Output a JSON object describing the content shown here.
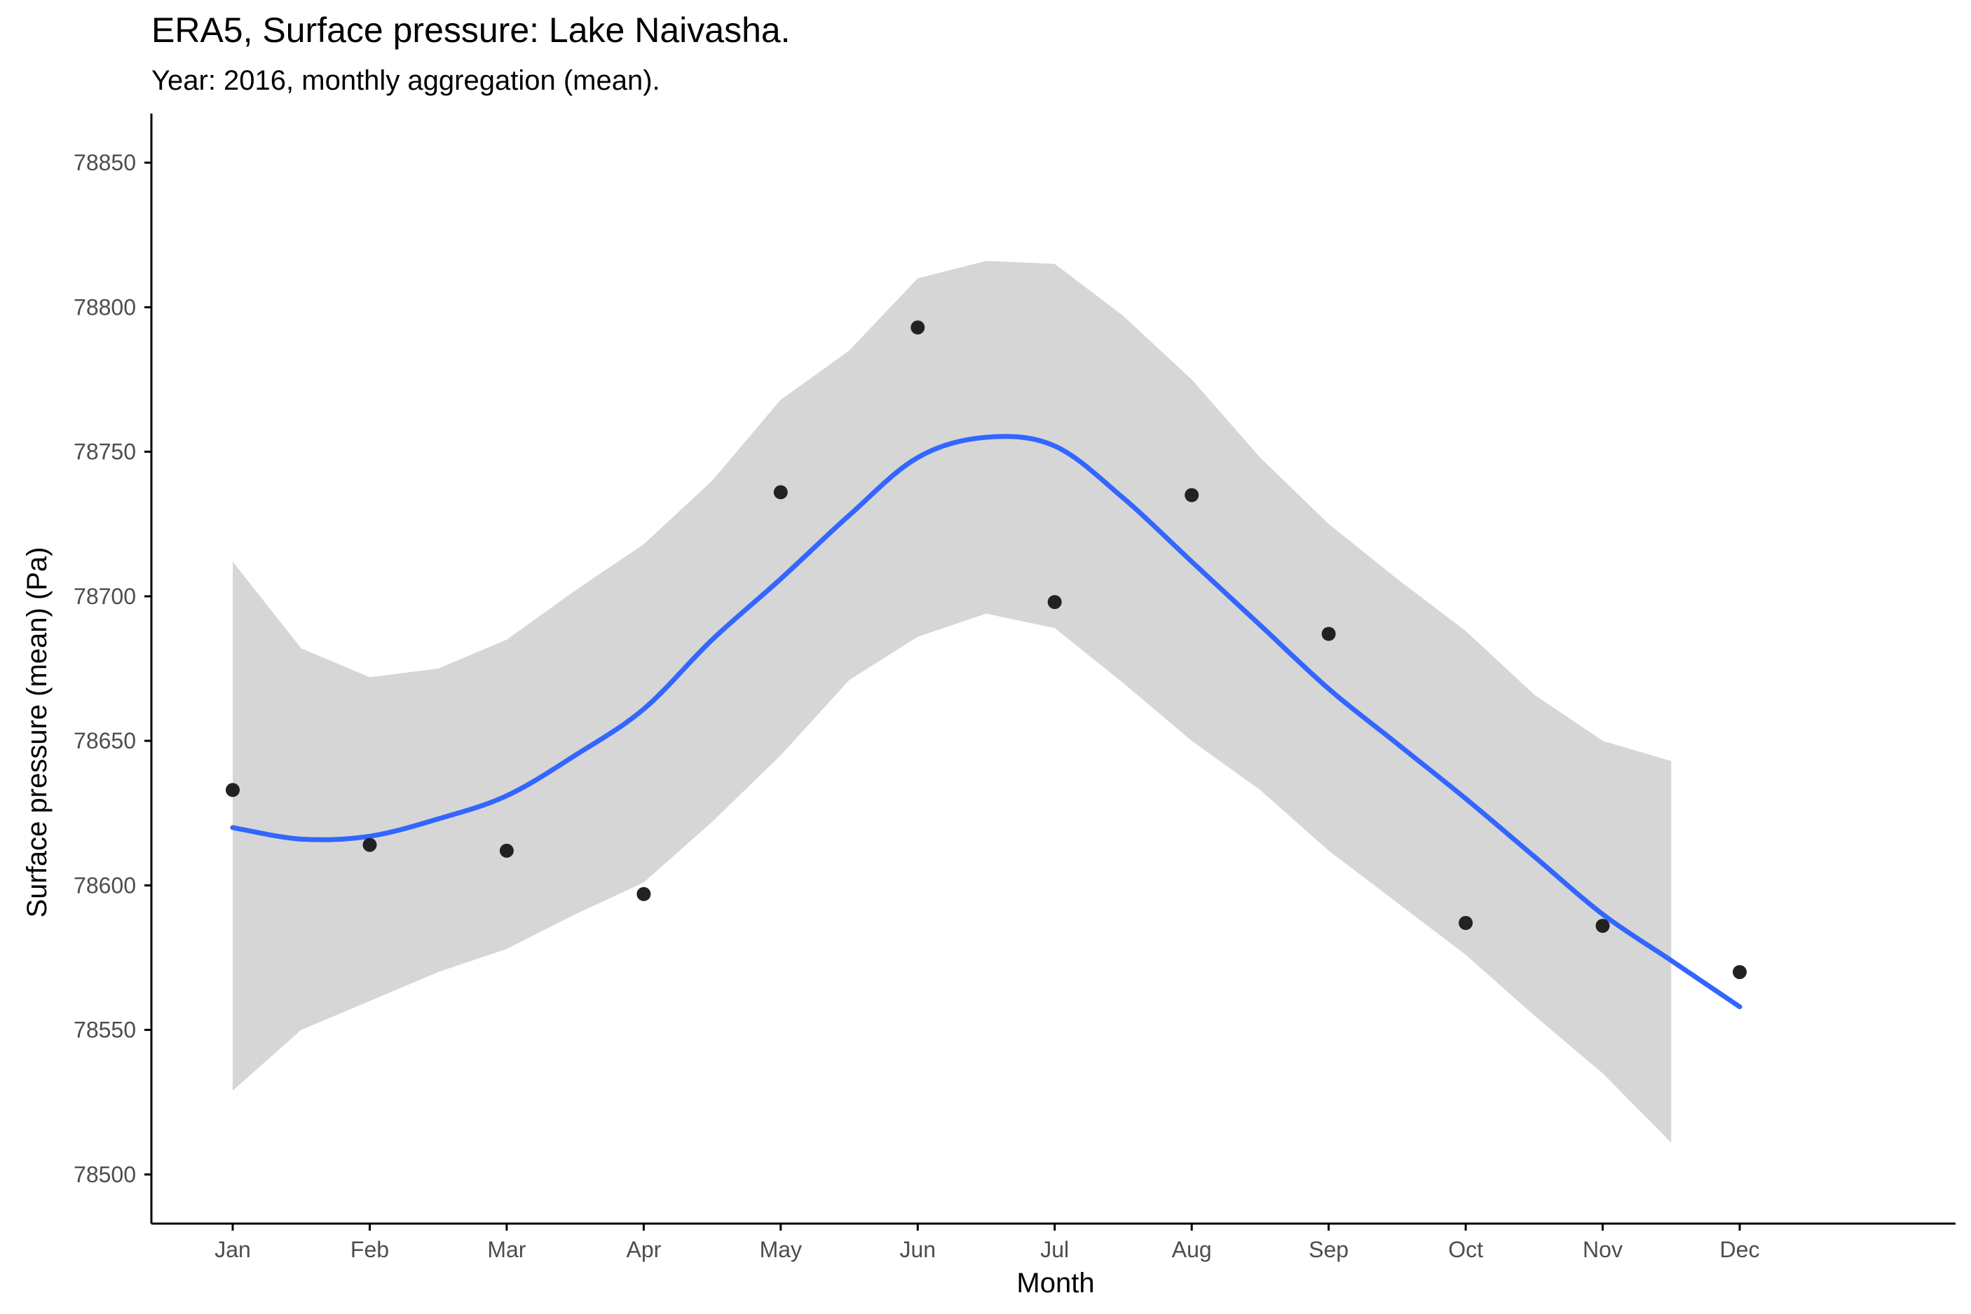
{
  "chart_data": {
    "type": "scatter",
    "title": "ERA5, Surface pressure: Lake Naivasha.",
    "subtitle": "Year: 2016, monthly aggregation (mean).",
    "xlabel": "Month",
    "ylabel": "Surface pressure (mean) (Pa)",
    "categories": [
      "Jan",
      "Feb",
      "Mar",
      "Apr",
      "May",
      "Jun",
      "Jul",
      "Aug",
      "Sep",
      "Oct",
      "Nov",
      "Dec"
    ],
    "ylim": [
      78483,
      78867
    ],
    "yticks": [
      78500,
      78550,
      78600,
      78650,
      78700,
      78750,
      78800,
      78850
    ],
    "grid": false,
    "points": [
      {
        "month": "Jan",
        "value": 78633
      },
      {
        "month": "Feb",
        "value": 78614
      },
      {
        "month": "Mar",
        "value": 78612
      },
      {
        "month": "Apr",
        "value": 78597
      },
      {
        "month": "May",
        "value": 78736
      },
      {
        "month": "Jun",
        "value": 78793
      },
      {
        "month": "Jul",
        "value": 78698
      },
      {
        "month": "Aug",
        "value": 78735
      },
      {
        "month": "Sep",
        "value": 78687
      },
      {
        "month": "Oct",
        "value": 78587
      },
      {
        "month": "Nov",
        "value": 78586
      },
      {
        "month": "Dec",
        "value": 78570
      }
    ],
    "smooth": {
      "x": [
        1,
        1.5,
        2,
        2.5,
        3,
        3.5,
        4,
        4.5,
        5,
        5.5,
        6,
        6.5,
        7,
        7.5,
        8,
        8.5,
        9,
        9.5,
        10,
        10.5,
        11,
        11.5,
        12
      ],
      "fit": [
        78620,
        78616,
        78617,
        78623,
        78631,
        78645,
        78661,
        78685,
        78706,
        78728,
        78748,
        78755,
        78752,
        78734,
        78712,
        78690,
        78668,
        78649,
        78630,
        78610,
        78590,
        78574,
        78558
      ],
      "upper": [
        78712,
        78682,
        78672,
        78675,
        78685,
        78702,
        78718,
        78740,
        78768,
        78785,
        78810,
        78816,
        78815,
        78797,
        78775,
        78748,
        78725,
        78706,
        78688,
        78666,
        78650,
        78643,
        null
      ],
      "lower": [
        78529,
        78550,
        78560,
        78570,
        78578,
        78590,
        78601,
        78622,
        78645,
        78671,
        78686,
        78694,
        78689,
        78670,
        78650,
        78633,
        78612,
        78594,
        78576,
        78555,
        78535,
        78511,
        null
      ]
    },
    "colors": {
      "line": "#3366ff",
      "band": "#d6d6d6",
      "points": "#222222",
      "axis": "#000000",
      "tick_text": "#4d4d4d"
    }
  }
}
